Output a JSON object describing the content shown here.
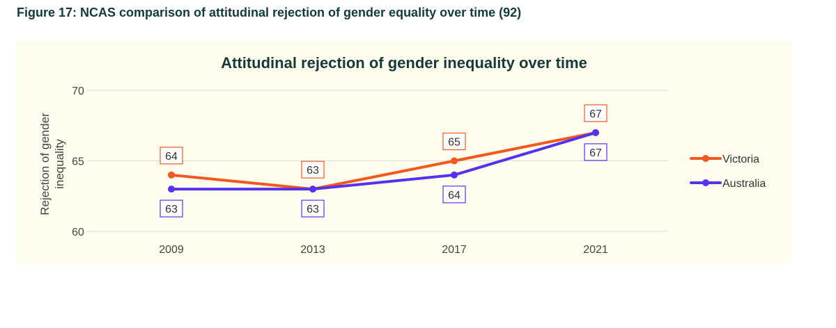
{
  "figure_caption": "Figure 17: NCAS comparison of attitudinal rejection of gender equality over time (92)",
  "chart_data": {
    "type": "line",
    "title": "Attitudinal  rejection of gender inequality over time",
    "xlabel": "",
    "ylabel": "Rejection of gender inequality",
    "ylabel_lines": [
      "Rejection of gender",
      "inequality"
    ],
    "categories": [
      "2009",
      "2013",
      "2017",
      "2021"
    ],
    "ylim": [
      60,
      70
    ],
    "yticks": [
      "60",
      "65",
      "70"
    ],
    "grid": true,
    "legend_position": "right",
    "series": [
      {
        "name": "Victoria",
        "values": [
          64,
          63,
          65,
          67
        ],
        "labels": [
          "64",
          "63",
          "65",
          "67"
        ],
        "color": "#f4581f",
        "label_position": "above"
      },
      {
        "name": "Australia",
        "values": [
          63,
          63,
          64,
          67
        ],
        "labels": [
          "63",
          "63",
          "64",
          "67"
        ],
        "color": "#5533ee",
        "label_position": "below"
      }
    ]
  },
  "colors": {
    "background": "#fffdee",
    "grid": "#d9d9d9",
    "title": "#17393a",
    "axis_text": "#444444",
    "caption": "#123b3b"
  }
}
